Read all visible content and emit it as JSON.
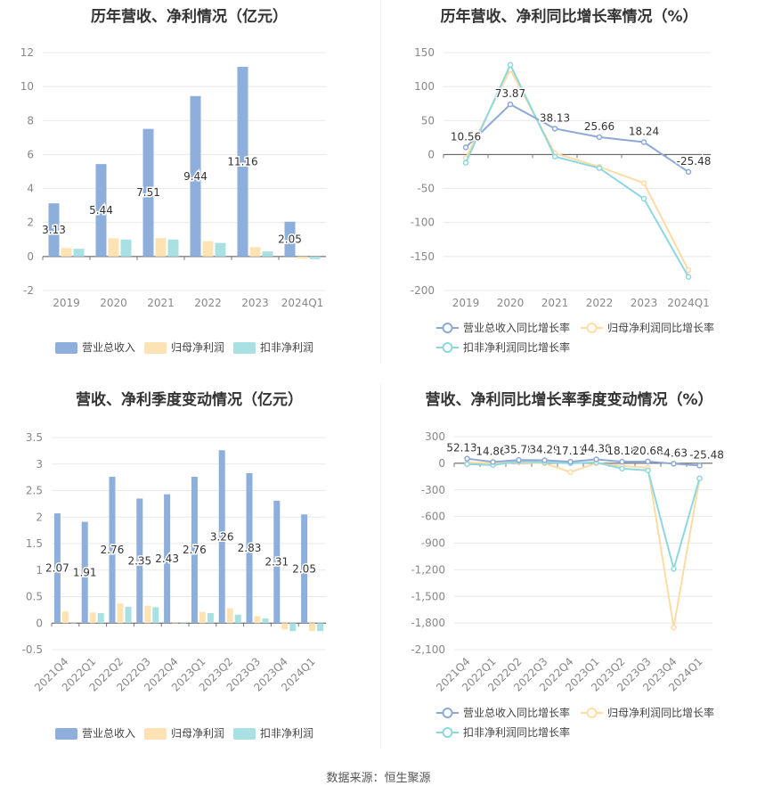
{
  "source_text": "数据来源：恒生聚源",
  "colors": {
    "revenue": "#8eaedb",
    "net_profit": "#fde3b3",
    "deducted_profit": "#a8e0e3",
    "revenue_line": "#8ea9d8",
    "net_line": "#fddba5",
    "deducted_line": "#8ed8dd",
    "axis_text": "#888888",
    "grid": "#e8e8e8"
  },
  "chart_data": [
    {
      "type": "bar",
      "title": "历年营收、净利情况（亿元）",
      "categories": [
        "2019",
        "2020",
        "2021",
        "2022",
        "2023",
        "2024Q1"
      ],
      "ylim": [
        -2,
        12
      ],
      "yticks": [
        "-2",
        "0",
        "2",
        "4",
        "6",
        "8",
        "10",
        "12"
      ],
      "series": [
        {
          "name": "营业总收入",
          "values": [
            3.13,
            5.44,
            7.51,
            9.44,
            11.16,
            2.05
          ],
          "labels": [
            "3.13",
            "5.44",
            "7.51",
            "9.44",
            "11.16",
            "2.05"
          ]
        },
        {
          "name": "归母净利润",
          "values": [
            0.5,
            1.08,
            1.08,
            0.9,
            0.55,
            -0.12
          ]
        },
        {
          "name": "扣非净利润",
          "values": [
            0.45,
            1.0,
            1.0,
            0.8,
            0.3,
            -0.15
          ]
        }
      ],
      "legend": "bottom"
    },
    {
      "type": "line",
      "title": "历年营收、净利同比增长率情况（%）",
      "categories": [
        "2019",
        "2020",
        "2021",
        "2022",
        "2023",
        "2024Q1"
      ],
      "ylim": [
        -200,
        150
      ],
      "yticks": [
        "-200",
        "-150",
        "-100",
        "-50",
        "0",
        "50",
        "100",
        "150"
      ],
      "series": [
        {
          "name": "营业总收入同比增长率",
          "values": [
            10.56,
            73.87,
            38.13,
            25.66,
            18.24,
            -25.48
          ],
          "labels": [
            "10.56",
            "73.87",
            "38.13",
            "25.66",
            "18.24",
            "-25.48"
          ]
        },
        {
          "name": "归母净利润同比增长率",
          "values": [
            -5,
            125,
            2,
            -18,
            -42,
            -170
          ]
        },
        {
          "name": "扣非净利润同比增长率",
          "values": [
            -12,
            132,
            -3,
            -20,
            -65,
            -180
          ]
        }
      ],
      "legend": "bottom"
    },
    {
      "type": "bar",
      "title": "营收、净利季度变动情况（亿元）",
      "categories": [
        "2021Q4",
        "2022Q1",
        "2022Q2",
        "2022Q3",
        "2022Q4",
        "2023Q1",
        "2023Q2",
        "2023Q3",
        "2023Q4",
        "2024Q1"
      ],
      "ylim": [
        -0.5,
        3.5
      ],
      "yticks": [
        "-0.5",
        "0",
        "0.5",
        "1",
        "1.5",
        "2",
        "2.5",
        "3",
        "3.5"
      ],
      "series": [
        {
          "name": "营业总收入",
          "values": [
            2.07,
            1.91,
            2.76,
            2.35,
            2.43,
            2.76,
            3.26,
            2.83,
            2.31,
            2.05
          ],
          "labels": [
            "2.07",
            "1.91",
            "2.76",
            "2.35",
            "2.43",
            "2.76",
            "3.26",
            "2.83",
            "2.31",
            "2.05"
          ]
        },
        {
          "name": "归母净利润",
          "values": [
            0.22,
            0.2,
            0.37,
            0.33,
            0.0,
            0.21,
            0.28,
            0.13,
            -0.12,
            -0.15
          ]
        },
        {
          "name": "扣非净利润",
          "values": [
            0.0,
            0.19,
            0.31,
            0.3,
            0.0,
            0.19,
            0.16,
            0.09,
            -0.15,
            -0.15
          ]
        }
      ],
      "legend": "bottom"
    },
    {
      "type": "line",
      "title": "营收、净利同比增长率季度变动情况（%）",
      "categories": [
        "2021Q4",
        "2022Q1",
        "2022Q2",
        "2022Q3",
        "2022Q4",
        "2023Q1",
        "2023Q2",
        "2023Q3",
        "2023Q4",
        "2024Q1"
      ],
      "ylim": [
        -2100,
        300
      ],
      "yticks": [
        "-2,100",
        "-1,800",
        "-1,500",
        "-1,200",
        "-900",
        "-600",
        "-300",
        "0",
        "300"
      ],
      "series": [
        {
          "name": "营业总收入同比增长率",
          "values": [
            52.13,
            14.86,
            35.78,
            34.29,
            17.11,
            44.38,
            18.18,
            20.68,
            -4.63,
            -25.48
          ],
          "labels": [
            "52.13",
            "14.86",
            "35.78",
            "34.29",
            "17.11",
            "44.38",
            "18.18",
            "20.68",
            "-4.63",
            "-25.48"
          ]
        },
        {
          "name": "归母净利润同比增长率",
          "values": [
            10,
            0,
            10,
            0,
            -100,
            0,
            -30,
            -50,
            -1850,
            -170
          ]
        },
        {
          "name": "扣非净利润同比增长率",
          "values": [
            -10,
            -20,
            20,
            10,
            0,
            10,
            -60,
            -80,
            -1190,
            -170
          ]
        }
      ],
      "legend": "bottom"
    }
  ]
}
